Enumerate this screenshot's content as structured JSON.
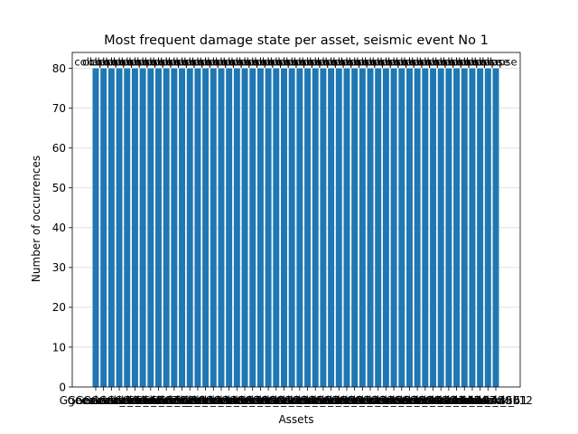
{
  "chart_data": {
    "type": "bar",
    "title": "Most frequent damage state per asset, seismic event No 1",
    "xlabel": "Assets",
    "ylabel": "Number of occurrences",
    "ylim": [
      0,
      84
    ],
    "yticks": [
      0,
      10,
      20,
      30,
      40,
      50,
      60,
      70,
      80
    ],
    "grid": "y",
    "bar_color": "#1f77b4",
    "bar_label": "collapse",
    "categories": [
      "Ggeoaksuk_1",
      "Goeoaksuk_2",
      "Goeoaksuk_3",
      "Goeoaksuk_4",
      "Goeoaksuk_5",
      "Goeoaksuk_6",
      "Goeoaksuk_7",
      "Goeoaksuk_8",
      "Goeoaksuk_9",
      "Goeoaksuk_10",
      "Goeoaksuk_11",
      "Goeoaksuk_12",
      "Goeoaksuk_13",
      "Goeoaksuk_14",
      "Goeoaksuk_15",
      "Goeoaksuk_16",
      "Goeoaksuk_17",
      "Goeoaksuk_18",
      "Goeoaksuk_19",
      "Goeoaksuk_20",
      "Goeoaksuk_21",
      "Goeoaksuk_22",
      "Goeoaksuk_23",
      "Goeoaksuk_24",
      "Goeoaksuk_25",
      "Goeoaksuk_26",
      "Goeoaksuk_27",
      "Goeoaksuk_28",
      "Goeoaksuk_29",
      "Goeoaksuk_30",
      "Goeoaksuk_31",
      "Goeoaksuk_32",
      "Goeoaksuk_33",
      "Goeoaksuk_34",
      "Goeoaksuk_35",
      "Goeoaksuk_36",
      "Goeoaksuk_37",
      "Goeoaksuk_38",
      "Goeoaksuk_39",
      "Goeoaksuk_40",
      "Goeoaksuk_41",
      "Goeoaksuk_42",
      "Goeoaksuk_43",
      "Goeoaksuk_44",
      "Goeoaksuk_45",
      "Goeoaksuk_46",
      "Goeoaksuk_47",
      "Goeoaksuk_48",
      "Goeoaksuk_49",
      "Goeoaksuk_50",
      "Goeoaksuk_51",
      "Goeoaksuk12"
    ],
    "values": [
      80,
      80,
      80,
      80,
      80,
      80,
      80,
      80,
      80,
      80,
      80,
      80,
      80,
      80,
      80,
      80,
      80,
      80,
      80,
      80,
      80,
      80,
      80,
      80,
      80,
      80,
      80,
      80,
      80,
      80,
      80,
      80,
      80,
      80,
      80,
      80,
      80,
      80,
      80,
      80,
      80,
      80,
      80,
      80,
      80,
      80,
      80,
      80,
      80,
      80,
      80,
      80
    ]
  }
}
